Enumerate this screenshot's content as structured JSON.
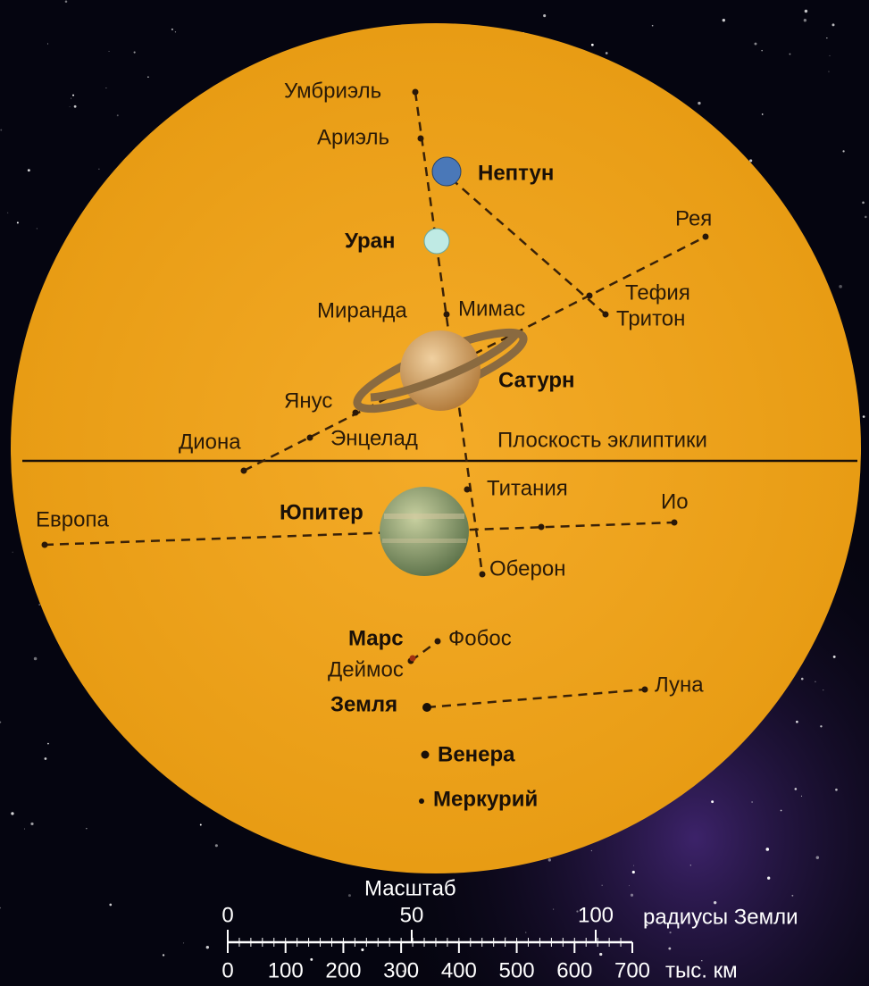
{
  "planets": {
    "neptune": "Нептун",
    "uranus": "Уран",
    "saturn": "Сатурн",
    "jupiter": "Юпитер",
    "mars": "Марс",
    "earth": "Земля",
    "venus": "Венера",
    "mercury": "Меркурий"
  },
  "moons": {
    "umbriel": "Умбриэль",
    "ariel": "Ариэль",
    "rhea": "Рея",
    "tethys": "Тефия",
    "triton": "Тритон",
    "miranda": "Миранда",
    "mimas": "Мимас",
    "janus": "Янус",
    "dione": "Диона",
    "enceladus": "Энцелад",
    "titania": "Титания",
    "io": "Ио",
    "europa": "Европа",
    "oberon": "Оберон",
    "phobos": "Фобос",
    "deimos": "Деймос",
    "moon": "Луна"
  },
  "ecliptic": "Плоскость эклиптики",
  "scale": {
    "title": "Масштаб",
    "earth_radii": {
      "ticks": [
        0,
        50,
        100
      ],
      "unit": "радиусы Земли"
    },
    "km": {
      "ticks": [
        0,
        100,
        200,
        300,
        400,
        500,
        600,
        700
      ],
      "unit": "тыс. км"
    }
  }
}
